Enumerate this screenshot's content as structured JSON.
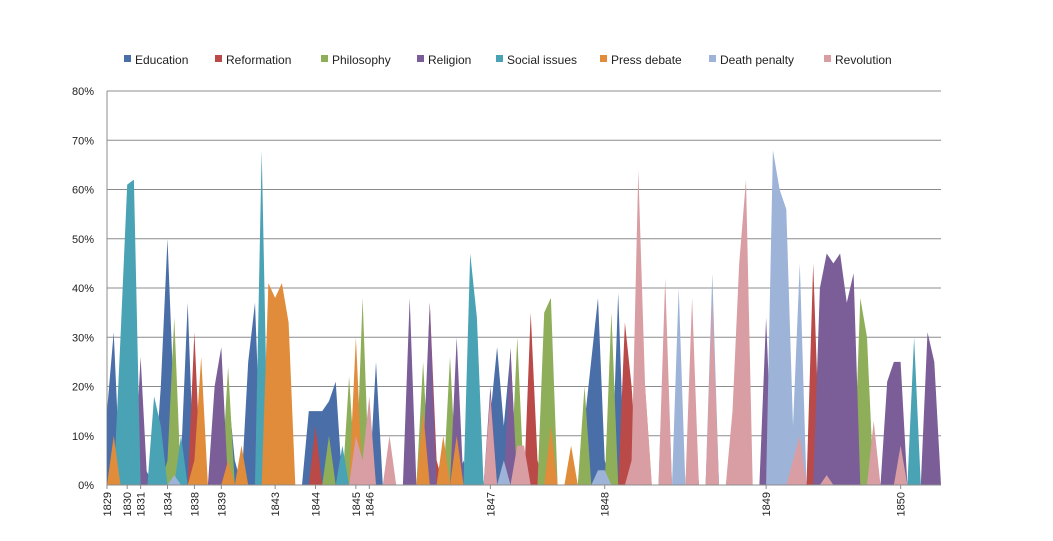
{
  "chart_data": {
    "type": "area",
    "title": "",
    "xlabel": "",
    "ylabel": "",
    "ylim": [
      0,
      80
    ],
    "y_unit": "%",
    "y_ticks": [
      0,
      10,
      20,
      30,
      40,
      50,
      60,
      70,
      80
    ],
    "y_tick_labels": [
      "0%",
      "10%",
      "20%",
      "30%",
      "40%",
      "50%",
      "60%",
      "70%",
      "80%"
    ],
    "grid": true,
    "legend_position": "top",
    "n_points": 124,
    "x_tick_labels": [
      {
        "index": 0,
        "label": "1829"
      },
      {
        "index": 3,
        "label": "1830"
      },
      {
        "index": 5,
        "label": "1831"
      },
      {
        "index": 9,
        "label": "1834"
      },
      {
        "index": 13,
        "label": "1838"
      },
      {
        "index": 17,
        "label": "1839"
      },
      {
        "index": 25,
        "label": "1843"
      },
      {
        "index": 31,
        "label": "1844"
      },
      {
        "index": 37,
        "label": "1845"
      },
      {
        "index": 39,
        "label": "1846"
      },
      {
        "index": 57,
        "label": "1847"
      },
      {
        "index": 74,
        "label": "1848"
      },
      {
        "index": 98,
        "label": "1849"
      },
      {
        "index": 118,
        "label": "1850"
      }
    ],
    "series": [
      {
        "name": "Education",
        "color": "#4a6ea8",
        "points": [
          [
            0,
            15
          ],
          [
            1,
            31
          ],
          [
            2,
            0
          ],
          [
            4,
            0
          ],
          [
            5,
            5
          ],
          [
            7,
            0
          ],
          [
            8,
            20
          ],
          [
            9,
            50
          ],
          [
            10,
            15
          ],
          [
            11,
            5
          ],
          [
            12,
            37
          ],
          [
            13,
            0
          ],
          [
            15,
            0
          ],
          [
            17,
            0
          ],
          [
            18,
            19
          ],
          [
            19,
            5
          ],
          [
            20,
            0
          ],
          [
            21,
            25
          ],
          [
            22,
            37
          ],
          [
            23,
            0
          ],
          [
            29,
            0
          ],
          [
            30,
            15
          ],
          [
            31,
            15
          ],
          [
            32,
            15
          ],
          [
            33,
            17
          ],
          [
            34,
            21
          ],
          [
            35,
            0
          ],
          [
            38,
            0
          ],
          [
            39,
            0
          ],
          [
            40,
            25
          ],
          [
            41,
            0
          ],
          [
            50,
            0
          ],
          [
            52,
            0
          ],
          [
            53,
            5
          ],
          [
            54,
            0
          ],
          [
            56,
            0
          ],
          [
            58,
            28
          ],
          [
            59,
            12
          ],
          [
            60,
            27
          ],
          [
            61,
            0
          ],
          [
            70,
            0
          ],
          [
            73,
            38
          ],
          [
            74,
            5
          ],
          [
            75,
            0
          ],
          [
            76,
            39
          ],
          [
            77,
            0
          ]
        ]
      },
      {
        "name": "Reformation",
        "color": "#b94a48",
        "points": [
          [
            12,
            0
          ],
          [
            13,
            31
          ],
          [
            14,
            0
          ],
          [
            30,
            0
          ],
          [
            31,
            12
          ],
          [
            32,
            0
          ],
          [
            47,
            0
          ],
          [
            48,
            37
          ],
          [
            49,
            5
          ],
          [
            50,
            0
          ],
          [
            53,
            0
          ],
          [
            54,
            25
          ],
          [
            55,
            0
          ],
          [
            62,
            0
          ],
          [
            63,
            35
          ],
          [
            64,
            5
          ],
          [
            65,
            0
          ],
          [
            76,
            0
          ],
          [
            77,
            33
          ],
          [
            78,
            20
          ],
          [
            79,
            0
          ],
          [
            104,
            0
          ],
          [
            105,
            45
          ],
          [
            106,
            5
          ],
          [
            107,
            0
          ]
        ]
      },
      {
        "name": "Philosophy",
        "color": "#8fae5a",
        "points": [
          [
            8,
            0
          ],
          [
            9,
            5
          ],
          [
            10,
            34
          ],
          [
            11,
            0
          ],
          [
            17,
            0
          ],
          [
            18,
            24
          ],
          [
            19,
            0
          ],
          [
            32,
            0
          ],
          [
            33,
            10
          ],
          [
            34,
            0
          ],
          [
            35,
            0
          ],
          [
            36,
            22
          ],
          [
            37,
            0
          ],
          [
            38,
            38
          ],
          [
            39,
            0
          ],
          [
            46,
            0
          ],
          [
            47,
            25
          ],
          [
            48,
            0
          ],
          [
            50,
            0
          ],
          [
            51,
            26
          ],
          [
            52,
            0
          ],
          [
            56,
            0
          ],
          [
            57,
            12
          ],
          [
            58,
            0
          ],
          [
            60,
            0
          ],
          [
            61,
            30
          ],
          [
            62,
            0
          ],
          [
            64,
            0
          ],
          [
            65,
            35
          ],
          [
            66,
            38
          ],
          [
            67,
            0
          ],
          [
            70,
            0
          ],
          [
            71,
            20
          ],
          [
            72,
            0
          ],
          [
            74,
            0
          ],
          [
            75,
            35
          ],
          [
            76,
            0
          ],
          [
            86,
            0
          ],
          [
            87,
            20
          ],
          [
            88,
            0
          ],
          [
            111,
            0
          ],
          [
            112,
            38
          ],
          [
            113,
            30
          ],
          [
            114,
            0
          ]
        ]
      },
      {
        "name": "Religion",
        "color": "#7b5e98",
        "points": [
          [
            4,
            0
          ],
          [
            5,
            26
          ],
          [
            6,
            0
          ],
          [
            15,
            0
          ],
          [
            16,
            20
          ],
          [
            17,
            28
          ],
          [
            18,
            0
          ],
          [
            44,
            0
          ],
          [
            45,
            38
          ],
          [
            46,
            0
          ],
          [
            47,
            5
          ],
          [
            48,
            37
          ],
          [
            49,
            0
          ],
          [
            51,
            0
          ],
          [
            52,
            30
          ],
          [
            53,
            0
          ],
          [
            56,
            0
          ],
          [
            57,
            20
          ],
          [
            58,
            0
          ],
          [
            59,
            0
          ],
          [
            60,
            28
          ],
          [
            61,
            0
          ],
          [
            78,
            0
          ],
          [
            79,
            10
          ],
          [
            80,
            0
          ],
          [
            86,
            0
          ],
          [
            87,
            22
          ],
          [
            88,
            0
          ],
          [
            97,
            0
          ],
          [
            98,
            34
          ],
          [
            99,
            0
          ],
          [
            105,
            0
          ],
          [
            106,
            40
          ],
          [
            107,
            47
          ],
          [
            108,
            45
          ],
          [
            109,
            47
          ],
          [
            110,
            37
          ],
          [
            111,
            43
          ],
          [
            112,
            0
          ],
          [
            115,
            0
          ],
          [
            116,
            21
          ],
          [
            117,
            25
          ],
          [
            118,
            25
          ],
          [
            119,
            0
          ],
          [
            121,
            0
          ],
          [
            122,
            31
          ],
          [
            123,
            25
          ],
          [
            124,
            0
          ]
        ]
      },
      {
        "name": "Social issues",
        "color": "#4aa3b5",
        "points": [
          [
            1,
            0
          ],
          [
            2,
            30
          ],
          [
            3,
            61
          ],
          [
            4,
            62
          ],
          [
            5,
            0
          ],
          [
            6,
            0
          ],
          [
            7,
            18
          ],
          [
            8,
            12
          ],
          [
            9,
            0
          ],
          [
            10,
            0
          ],
          [
            11,
            10
          ],
          [
            12,
            0
          ],
          [
            22,
            0
          ],
          [
            23,
            68
          ],
          [
            24,
            0
          ],
          [
            34,
            0
          ],
          [
            35,
            8
          ],
          [
            36,
            0
          ],
          [
            53,
            0
          ],
          [
            54,
            47
          ],
          [
            55,
            34
          ],
          [
            56,
            0
          ],
          [
            82,
            0
          ],
          [
            83,
            37
          ],
          [
            84,
            0
          ],
          [
            89,
            0
          ],
          [
            90,
            35
          ],
          [
            91,
            0
          ],
          [
            119,
            0
          ],
          [
            120,
            30
          ],
          [
            121,
            0
          ]
        ]
      },
      {
        "name": "Press debate",
        "color": "#e08c3a",
        "points": [
          [
            0,
            0
          ],
          [
            1,
            10
          ],
          [
            2,
            0
          ],
          [
            12,
            0
          ],
          [
            13,
            5
          ],
          [
            14,
            26
          ],
          [
            15,
            0
          ],
          [
            17,
            0
          ],
          [
            18,
            5
          ],
          [
            19,
            0
          ],
          [
            20,
            8
          ],
          [
            21,
            0
          ],
          [
            23,
            0
          ],
          [
            24,
            41
          ],
          [
            25,
            38
          ],
          [
            26,
            41
          ],
          [
            27,
            33
          ],
          [
            28,
            0
          ],
          [
            36,
            0
          ],
          [
            37,
            30
          ],
          [
            38,
            0
          ],
          [
            46,
            0
          ],
          [
            47,
            15
          ],
          [
            48,
            0
          ],
          [
            49,
            0
          ],
          [
            50,
            10
          ],
          [
            51,
            0
          ],
          [
            52,
            10
          ],
          [
            53,
            0
          ],
          [
            56,
            0
          ],
          [
            57,
            5
          ],
          [
            58,
            0
          ],
          [
            65,
            0
          ],
          [
            66,
            12
          ],
          [
            67,
            0
          ],
          [
            68,
            0
          ],
          [
            69,
            8
          ],
          [
            70,
            0
          ],
          [
            78,
            0
          ],
          [
            79,
            15
          ],
          [
            80,
            20
          ],
          [
            81,
            0
          ],
          [
            117,
            0
          ],
          [
            118,
            5
          ],
          [
            119,
            0
          ]
        ]
      },
      {
        "name": "Death penalty",
        "color": "#9db4d8",
        "points": [
          [
            9,
            0
          ],
          [
            10,
            2
          ],
          [
            11,
            0
          ],
          [
            58,
            0
          ],
          [
            59,
            5
          ],
          [
            60,
            0
          ],
          [
            72,
            0
          ],
          [
            73,
            3
          ],
          [
            74,
            3
          ],
          [
            75,
            0
          ],
          [
            84,
            0
          ],
          [
            85,
            40
          ],
          [
            86,
            0
          ],
          [
            89,
            0
          ],
          [
            90,
            43
          ],
          [
            91,
            0
          ],
          [
            98,
            0
          ],
          [
            99,
            68
          ],
          [
            100,
            60
          ],
          [
            101,
            56
          ],
          [
            102,
            12
          ],
          [
            103,
            45
          ],
          [
            104,
            0
          ]
        ]
      },
      {
        "name": "Revolution",
        "color": "#d99ea3",
        "points": [
          [
            36,
            0
          ],
          [
            37,
            10
          ],
          [
            38,
            5
          ],
          [
            39,
            18
          ],
          [
            40,
            0
          ],
          [
            41,
            0
          ],
          [
            42,
            10
          ],
          [
            43,
            0
          ],
          [
            56,
            0
          ],
          [
            57,
            18
          ],
          [
            58,
            0
          ],
          [
            60,
            0
          ],
          [
            61,
            8
          ],
          [
            62,
            8
          ],
          [
            63,
            0
          ],
          [
            77,
            0
          ],
          [
            78,
            5
          ],
          [
            79,
            64
          ],
          [
            80,
            20
          ],
          [
            81,
            0
          ],
          [
            82,
            0
          ],
          [
            83,
            42
          ],
          [
            84,
            0
          ],
          [
            86,
            0
          ],
          [
            87,
            38
          ],
          [
            88,
            0
          ],
          [
            89,
            0
          ],
          [
            90,
            38
          ],
          [
            91,
            0
          ],
          [
            92,
            0
          ],
          [
            93,
            15
          ],
          [
            94,
            45
          ],
          [
            95,
            62
          ],
          [
            96,
            0
          ],
          [
            101,
            0
          ],
          [
            102,
            5
          ],
          [
            103,
            10
          ],
          [
            104,
            0
          ],
          [
            106,
            0
          ],
          [
            107,
            2
          ],
          [
            108,
            0
          ],
          [
            113,
            0
          ],
          [
            114,
            13
          ],
          [
            115,
            0
          ],
          [
            117,
            0
          ],
          [
            118,
            8
          ],
          [
            119,
            0
          ]
        ]
      }
    ]
  }
}
